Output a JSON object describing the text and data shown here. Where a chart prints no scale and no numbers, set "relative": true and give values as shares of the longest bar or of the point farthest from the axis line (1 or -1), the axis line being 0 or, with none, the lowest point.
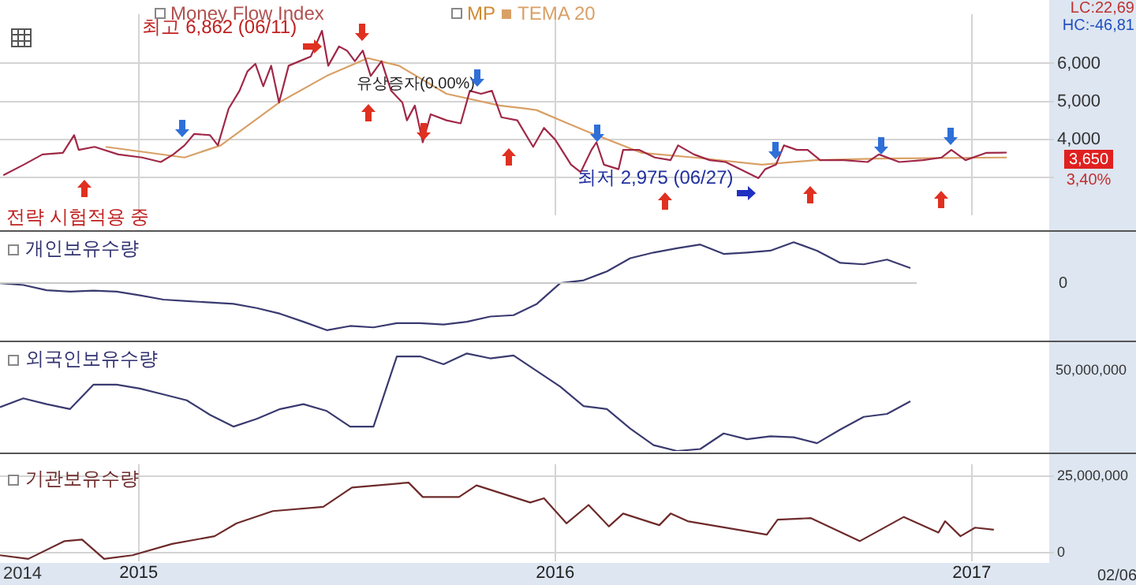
{
  "chart_data": [
    {
      "type": "line",
      "xlim": [
        2014.667,
        2017.186
      ],
      "xticks": [
        2015,
        2016,
        2017
      ],
      "ylim": [
        2000,
        7300
      ],
      "yticks": [
        {
          "value": 3000,
          "label": null
        },
        {
          "value": 4000,
          "label": "4,000"
        },
        {
          "value": 5000,
          "label": "5,000"
        },
        {
          "value": 6000,
          "label": "6,000"
        }
      ],
      "grid": true,
      "tick_labels": "y",
      "legend": "top left",
      "annotations": [
        {
          "text": "최고 6,862 (06/11)",
          "x": 2015.44,
          "y": 6862
        },
        {
          "text": "최저 2,975 (06/27)",
          "x": 2016.488,
          "y": 2975
        },
        "유상증자(0.00%)",
        "전략 시험적용 중",
        "LC:22,69",
        "HC:-46,81",
        "3,650",
        "3,40%",
        "Money Flow Index",
        "MP"
      ],
      "series": [
        {
          "color": "#a02848",
          "x": [
            2014.675,
            2014.724,
            2014.769,
            2014.818,
            2014.845,
            2014.856,
            2014.894,
            2014.951,
            2015.008,
            2015.053,
            2015.083,
            2015.11,
            2015.133,
            2015.171,
            2015.19,
            2015.216,
            2015.242,
            2015.261,
            2015.28,
            2015.299,
            2015.318,
            2015.337,
            2015.36,
            2015.386,
            2015.413,
            2015.44,
            2015.455,
            2015.481,
            2015.5,
            2015.519,
            2015.538,
            2015.557,
            2015.583,
            2015.606,
            2015.633,
            2015.644,
            2015.663,
            2015.682,
            2015.701,
            2015.739,
            2015.773,
            2015.795,
            2015.822,
            2015.848,
            2015.871,
            2015.909,
            2015.947,
            2015.973,
            2016.0,
            2016.038,
            2016.061,
            2016.087,
            2016.099,
            2016.117,
            2016.152,
            2016.163,
            2016.201,
            2016.239,
            2016.277,
            2016.295,
            2016.333,
            2016.371,
            2016.409,
            2016.488,
            2016.504,
            2016.53,
            2016.549,
            2016.58,
            2016.606,
            2016.636,
            2016.693,
            2016.75,
            2016.777,
            2016.826,
            2016.883,
            2016.928,
            2016.951,
            2016.985,
            2017.034,
            2017.084
          ],
          "values": [
            3050,
            3330,
            3600,
            3640,
            4110,
            3720,
            3800,
            3600,
            3520,
            3400,
            3600,
            3840,
            4140,
            4110,
            3840,
            4810,
            5280,
            5790,
            5990,
            5400,
            5940,
            4970,
            5940,
            6060,
            6180,
            6862,
            5940,
            6450,
            6340,
            6060,
            6340,
            5670,
            6060,
            5280,
            4970,
            4500,
            4890,
            3920,
            4660,
            4500,
            4420,
            5280,
            5200,
            5280,
            4580,
            4500,
            3800,
            4300,
            3990,
            3330,
            3130,
            3720,
            3920,
            3330,
            3210,
            3720,
            3720,
            3520,
            3450,
            3840,
            3600,
            3450,
            3400,
            2975,
            3210,
            3330,
            3840,
            3720,
            3720,
            3450,
            3450,
            3400,
            3600,
            3400,
            3450,
            3520,
            3720,
            3450,
            3640,
            3650
          ]
        },
        {
          "name": "TEMA 20",
          "color": "#d9a066",
          "x": [
            2014.921,
            2015.11,
            2015.197,
            2015.337,
            2015.451,
            2015.55,
            2015.625,
            2015.739,
            2015.867,
            2015.928,
            2015.955,
            2016.03,
            2016.08,
            2016.208,
            2016.333,
            2016.496,
            2016.625,
            2016.777,
            2017.084
          ],
          "values": [
            3800,
            3520,
            3840,
            4970,
            5670,
            6140,
            5940,
            5200,
            4890,
            4810,
            4770,
            4420,
            4190,
            3640,
            3520,
            3330,
            3450,
            3490,
            3520
          ]
        }
      ]
    },
    {
      "type": "line",
      "title": "개인보유수량",
      "relative": true,
      "categories": [
        null,
        null,
        null,
        null,
        null,
        null,
        null,
        null,
        null,
        null,
        null,
        null,
        null,
        null,
        null,
        null,
        null,
        null,
        null,
        null,
        null,
        null,
        null,
        null,
        null,
        null,
        null,
        null,
        null,
        null,
        null,
        null,
        null,
        null,
        null,
        null,
        null,
        null,
        null,
        null
      ],
      "annotations": [
        "0"
      ],
      "series": [
        {
          "color": "#3a3a70",
          "values": [
            0,
            -0.04,
            -0.15,
            -0.18,
            -0.16,
            -0.18,
            -0.26,
            -0.35,
            -0.38,
            -0.41,
            -0.44,
            -0.53,
            -0.65,
            -0.82,
            -1,
            -0.91,
            -0.94,
            -0.85,
            -0.85,
            -0.88,
            -0.82,
            -0.71,
            -0.68,
            -0.44,
            0,
            0.06,
            0.25,
            0.53,
            0.65,
            0.74,
            0.82,
            0.62,
            0.65,
            0.69,
            0.87,
            0.69,
            0.43,
            0.4,
            0.5,
            0.32
          ]
        }
      ]
    },
    {
      "type": "line",
      "title": "외국인보유수량",
      "relative": true,
      "categories": [
        null,
        null,
        null,
        null,
        null,
        null,
        null,
        null,
        null,
        null,
        null,
        null,
        null,
        null,
        null,
        null,
        null,
        null,
        null,
        null,
        null,
        null,
        null,
        null,
        null,
        null,
        null,
        null,
        null,
        null,
        null,
        null,
        null,
        null,
        null,
        null,
        null,
        null,
        null,
        null
      ],
      "annotations": [
        "50,000,000"
      ],
      "series": [
        {
          "color": "#3a3a70",
          "values": [
            0.45,
            0.54,
            0.48,
            0.43,
            0.68,
            0.68,
            0.64,
            0.58,
            0.52,
            0.37,
            0.25,
            0.33,
            0.43,
            0.48,
            0.41,
            0.25,
            0.25,
            0.97,
            0.97,
            0.89,
            1,
            0.95,
            0.98,
            0.82,
            0.66,
            0.46,
            0.43,
            0.23,
            0.06,
            0,
            0.02,
            0.18,
            0.12,
            0.15,
            0.14,
            0.08,
            0.22,
            0.35,
            0.38,
            0.51
          ]
        }
      ]
    },
    {
      "type": "line",
      "title": "기관보유수량",
      "xlim": [
        2014.667,
        2017.186
      ],
      "xticks": [
        2015,
        2016,
        2017
      ],
      "ylim": [
        -2600000,
        29000000
      ],
      "yticks": [
        {
          "value": 0,
          "label": "0"
        },
        {
          "value": 25000000,
          "label": "25,000,000"
        }
      ],
      "grid": true,
      "annotations": [
        "2014",
        "02/06"
      ],
      "series": [
        {
          "color": "#6e2a2a",
          "x": [
            2014.667,
            2014.735,
            2014.822,
            2014.864,
            2014.917,
            2014.985,
            2015.08,
            2015.182,
            2015.235,
            2015.322,
            2015.443,
            2015.512,
            2015.648,
            2015.682,
            2015.769,
            2015.811,
            2015.94,
            2015.973,
            2016.027,
            2016.08,
            2016.129,
            2016.163,
            2016.25,
            2016.277,
            2016.318,
            2016.508,
            2016.534,
            2016.614,
            2016.731,
            2016.837,
            2016.92,
            2016.936,
            2016.973,
            2017.008,
            2017.053
          ],
          "values": [
            -700000,
            -1900000,
            3900000,
            4400000,
            -1900000,
            -700000,
            3000000,
            5500000,
            9700000,
            13700000,
            15100000,
            21400000,
            23000000,
            18300000,
            18300000,
            22100000,
            16500000,
            17900000,
            9700000,
            15700000,
            8700000,
            12900000,
            9100000,
            12900000,
            10400000,
            6000000,
            10900000,
            11400000,
            3900000,
            11800000,
            6700000,
            10400000,
            5500000,
            8300000,
            7600000
          ]
        }
      ]
    }
  ]
}
